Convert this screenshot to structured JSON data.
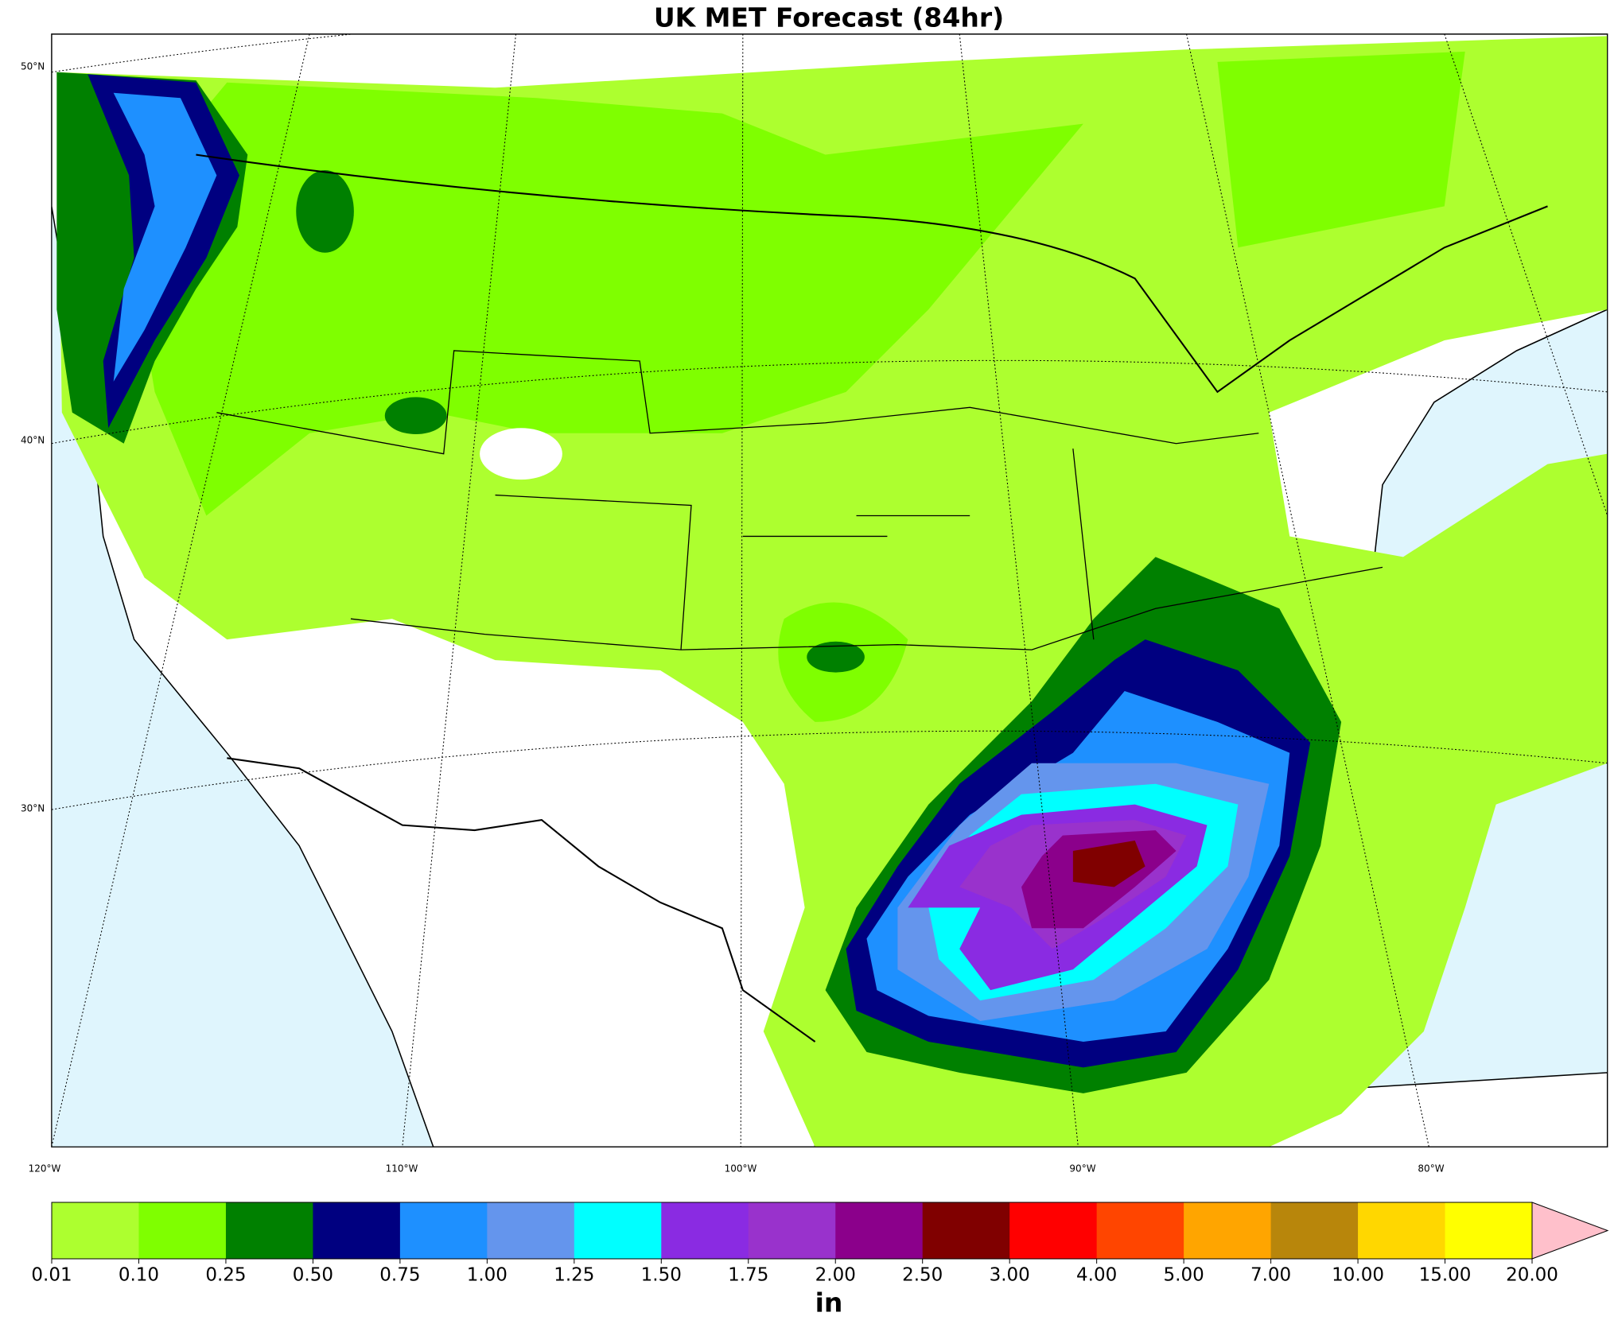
{
  "header": {
    "title": "UK MET Forecast (84hr)"
  },
  "map": {
    "lat_labels": [
      "50°N",
      "40°N",
      "30°N"
    ],
    "lon_labels": [
      "120°W",
      "110°W",
      "100°W",
      "90°W",
      "80°W"
    ]
  },
  "colorbar": {
    "labels": [
      "0.01",
      "0.10",
      "0.25",
      "0.50",
      "0.75",
      "1.00",
      "1.25",
      "1.50",
      "1.75",
      "2.00",
      "2.50",
      "3.00",
      "4.00",
      "5.00",
      "7.00",
      "10.00",
      "15.00",
      "20.00"
    ],
    "colors": [
      "#adff2f",
      "#7fff00",
      "#008000",
      "#000080",
      "#1e90ff",
      "#6495ed",
      "#00ffff",
      "#8a2be2",
      "#9932cc",
      "#8b008b",
      "#800000",
      "#ff0000",
      "#ff4500",
      "#ffa500",
      "#b8860b",
      "#ffd700",
      "#ffff00"
    ],
    "extend_color": "#ffc0cb",
    "unit": "in"
  }
}
